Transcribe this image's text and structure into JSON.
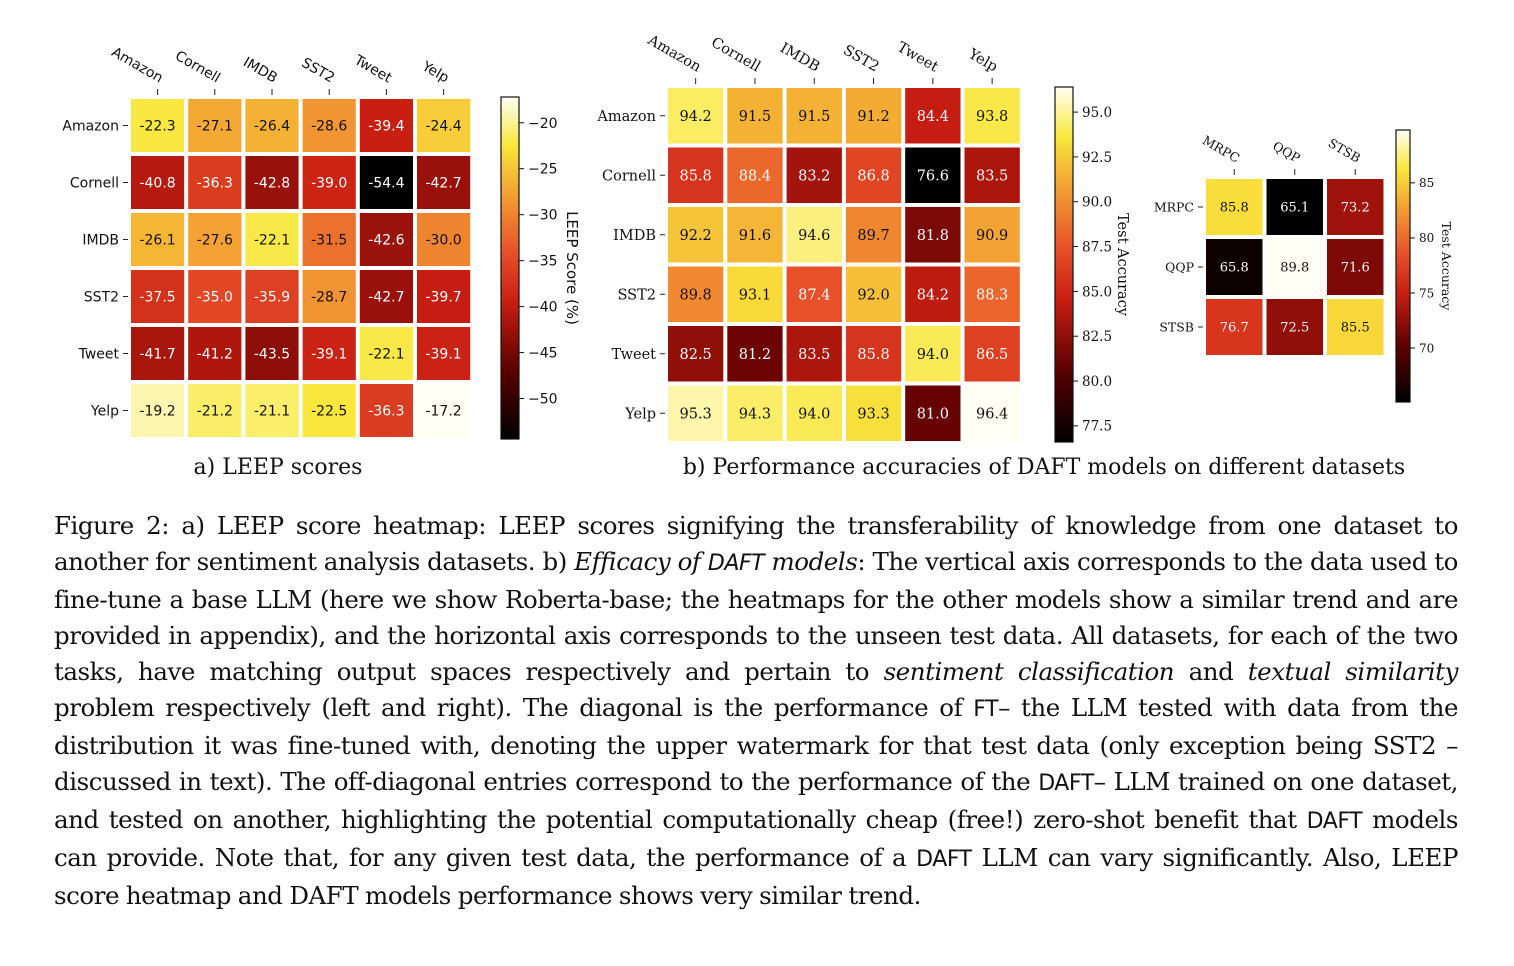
{
  "figure": {
    "panel_a_label": "a) LEEP scores",
    "panel_b_label": "b) Performance accuracies of DAFT models on different datasets"
  },
  "chart_data": [
    {
      "type": "heatmap",
      "rows": [
        "Amazon",
        "Cornell",
        "IMDB",
        "SST2",
        "Tweet",
        "Yelp"
      ],
      "cols": [
        "Amazon",
        "Cornell",
        "IMDB",
        "SST2",
        "Tweet",
        "Yelp"
      ],
      "values": [
        [
          -22.3,
          -27.1,
          -26.4,
          -28.6,
          -39.4,
          -24.4
        ],
        [
          -40.8,
          -36.3,
          -42.8,
          -39.0,
          -54.4,
          -42.7
        ],
        [
          -26.1,
          -27.6,
          -22.1,
          -31.5,
          -42.6,
          -30.0
        ],
        [
          -37.5,
          -35.0,
          -35.9,
          -28.7,
          -42.7,
          -39.7
        ],
        [
          -41.7,
          -41.2,
          -43.5,
          -39.1,
          -22.1,
          -39.1
        ],
        [
          -19.2,
          -21.2,
          -21.1,
          -22.5,
          -36.3,
          -17.2
        ]
      ],
      "colorbar_label": "LEEP Score (%)",
      "colorbar_range": [
        -54.4,
        -17.2
      ],
      "colorbar_ticks": [
        "−20",
        "−25",
        "−30",
        "−35",
        "−40",
        "−45",
        "−50"
      ],
      "colormap": "hot"
    },
    {
      "type": "heatmap",
      "rows": [
        "Amazon",
        "Cornell",
        "IMDB",
        "SST2",
        "Tweet",
        "Yelp"
      ],
      "cols": [
        "Amazon",
        "Cornell",
        "IMDB",
        "SST2",
        "Tweet",
        "Yelp"
      ],
      "values": [
        [
          94.2,
          91.5,
          91.5,
          91.2,
          84.4,
          93.8
        ],
        [
          85.8,
          88.4,
          83.2,
          86.8,
          76.6,
          83.5
        ],
        [
          92.2,
          91.6,
          94.6,
          89.7,
          81.8,
          90.9
        ],
        [
          89.8,
          93.1,
          87.4,
          92.0,
          84.2,
          88.3
        ],
        [
          82.5,
          81.2,
          83.5,
          85.8,
          94.0,
          86.5
        ],
        [
          95.3,
          94.3,
          94.0,
          93.3,
          81.0,
          96.4
        ]
      ],
      "colorbar_label": "Test Accuracy",
      "colorbar_range": [
        76.6,
        96.4
      ],
      "colorbar_ticks": [
        "95.0",
        "92.5",
        "90.0",
        "87.5",
        "85.0",
        "82.5",
        "80.0",
        "77.5"
      ],
      "colormap": "hot"
    },
    {
      "type": "heatmap",
      "rows": [
        "MRPC",
        "QQP",
        "STSB"
      ],
      "cols": [
        "MRPC",
        "QQP",
        "STSB"
      ],
      "values": [
        [
          85.8,
          65.1,
          73.2
        ],
        [
          65.8,
          89.8,
          71.6
        ],
        [
          76.7,
          72.5,
          85.5
        ]
      ],
      "colorbar_label": "Test Accuracy",
      "colorbar_range": [
        65.1,
        89.8
      ],
      "colorbar_ticks": [
        "85",
        "80",
        "75",
        "70"
      ],
      "colormap": "hot"
    }
  ],
  "caption": {
    "figure_no": "Figure 2:",
    "s1": "a) LEEP score heatmap: LEEP scores signifying the transferability of knowledge from one dataset to another for sentiment analysis datasets. b)",
    "efficacy": "Efficacy of",
    "daft_em": "DAFT",
    "models_em": "models",
    "s2": ": The vertical axis corresponds to the data used to fine-tune a base LLM (here we show Roberta-base; the heatmaps for the other models show a similar trend and are provided in appendix), and the horizontal axis corresponds to the unseen test data. All datasets, for each of the two tasks, have matching output spaces respectively and pertain to",
    "sentiment_classification": "sentiment classification",
    "and": "and",
    "textual_similarity": "textual similarity",
    "s3": "problem respectively (left and right). The diagonal is the performance of",
    "ft": "FT",
    "s4": "– the LLM tested with data from the distribution it was fine-tuned with, denoting the upper watermark for that test data (only exception being SST2 – discussed in text). The off-diagonal entries correspond to the performance of the",
    "daft1": "DAFT",
    "s5": "– LLM trained on one dataset, and tested on another, highlighting the potential computationally cheap (free!) zero-shot benefit that",
    "daft2": "DAFT",
    "s6": "models can provide. Note that, for any given test data, the performance of a",
    "daft3": "DAFT",
    "s7": "LLM can vary significantly. Also, LEEP score heatmap and DAFT models performance shows very similar trend."
  }
}
